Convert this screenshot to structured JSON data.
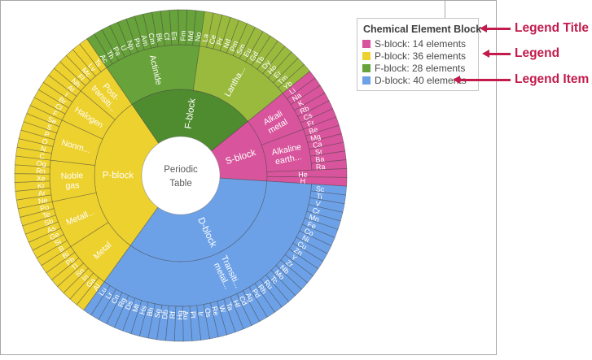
{
  "chart_data": {
    "type": "sunburst",
    "center_label_lines": [
      "Periodic",
      "Table"
    ],
    "start_angle": 51,
    "rings": [
      "block",
      "group",
      "element"
    ],
    "blocks": [
      {
        "name": "S-block",
        "color": "#d8549c",
        "legend_label": "S-block: 14 elements",
        "children": [
          {
            "label": "Alkali metal",
            "label_lines": [
              "Alkali",
              "metal"
            ],
            "elements": [
              "Li",
              "Na",
              "K",
              "Rb",
              "Cs",
              "Fr"
            ]
          },
          {
            "label": "Alkaline earth...",
            "label_lines": [
              "Alkaline",
              "earth..."
            ],
            "elements": [
              "Be",
              "Mg",
              "Ca",
              "Sr",
              "Ba",
              "Ra"
            ]
          },
          {
            "label": "",
            "label_lines": [],
            "span": true,
            "elements": [
              "He"
            ]
          },
          {
            "label": "",
            "label_lines": [],
            "span": true,
            "elements": [
              "H"
            ]
          }
        ]
      },
      {
        "name": "D-block",
        "color": "#6da1e7",
        "legend_label": "D-block: 40 elements",
        "children": [
          {
            "label": "Transition metal",
            "label_lines": [
              "Transiti...",
              "metal..."
            ],
            "elements": [
              "Sc",
              "Ti",
              "V",
              "Cr",
              "Mn",
              "Fe",
              "Co",
              "Ni",
              "Cu",
              "Zn",
              "Y",
              "Zr",
              "Nb",
              "Mo",
              "Tc",
              "Ru",
              "Rh",
              "Pd",
              "Ag",
              "Cd",
              "Hf",
              "Ta",
              "W",
              "Re",
              "Os",
              "Ir",
              "Pt",
              "Au",
              "Hg",
              "Rf",
              "Db",
              "Sg",
              "Bh",
              "Hs",
              "Mt",
              "Ds",
              "Rg",
              "Cn",
              "Lr",
              "Lu"
            ]
          }
        ]
      },
      {
        "name": "P-block",
        "color": "#edd12e",
        "legend_label": "P-block: 36 elements",
        "children": [
          {
            "label": "Metal",
            "label_lines": [
              "Metal"
            ],
            "elements": [
              "Al",
              "Ga",
              "In",
              "Sn",
              "Tl",
              "Pb",
              "Bi"
            ]
          },
          {
            "label": "Metalloid",
            "label_lines": [
              "Metall..."
            ],
            "elements": [
              "B",
              "Si",
              "Ge",
              "As",
              "Sb",
              "Te",
              "Po"
            ]
          },
          {
            "label": "Noble gas",
            "label_lines": [
              "Noble",
              "gas"
            ],
            "elements": [
              "Ne",
              "Ar",
              "Kr",
              "Xe",
              "Rn",
              "Og"
            ]
          },
          {
            "label": "Nonmetal",
            "label_lines": [
              "Nonm..."
            ],
            "elements": [
              "C",
              "N",
              "O",
              "P",
              "S",
              "Se"
            ]
          },
          {
            "label": "Halogen",
            "label_lines": [
              "Halogen"
            ],
            "elements": [
              "F",
              "Cl",
              "Br",
              "I",
              "At"
            ]
          },
          {
            "label": "Post-transition metal",
            "label_lines": [
              "Post-",
              "transiti..."
            ],
            "elements": [
              "Nh",
              "Fl",
              "Mc",
              "Lv",
              "Ts"
            ]
          }
        ]
      },
      {
        "name": "F-block",
        "color": "#4f8c2f",
        "legend_label": "F-block: 28 elements",
        "children": [
          {
            "label": "Actinide",
            "label_lines": [
              "Actinide"
            ],
            "color": "#68a23a",
            "elements": [
              "Ac",
              "Th",
              "Pa",
              "U",
              "Np",
              "Pu",
              "Am",
              "Cm",
              "Bk",
              "Cf",
              "Es",
              "Fm",
              "Md",
              "No"
            ]
          },
          {
            "label": "Lanthanide",
            "label_lines": [
              "Lantha..."
            ],
            "color": "#9aba3e",
            "elements": [
              "La",
              "Ce",
              "Pr",
              "Nd",
              "Pm",
              "Sm",
              "Eu",
              "Gd",
              "Tb",
              "Dy",
              "Ho",
              "Er",
              "Tm",
              "Yb"
            ]
          }
        ]
      }
    ]
  },
  "legend": {
    "title": "Chemical Element Block",
    "items": [
      {
        "label": "S-block: 14 elements",
        "color": "#d8549c"
      },
      {
        "label": "P-block: 36 elements",
        "color": "#edd12e"
      },
      {
        "label": "F-block: 28 elements",
        "color": "#68a23a"
      },
      {
        "label": "D-block: 40 elements",
        "color": "#6da1e7"
      }
    ]
  },
  "annotations": {
    "color": "#c21b4c",
    "items": [
      {
        "label": "Legend Title"
      },
      {
        "label": "Legend"
      },
      {
        "label": "Legend Item"
      }
    ]
  }
}
